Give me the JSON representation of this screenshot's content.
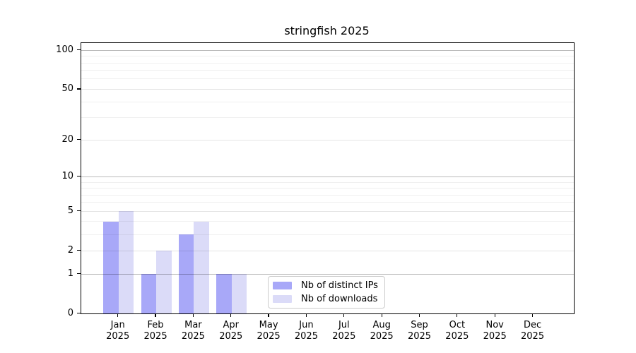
{
  "title": "stringfish 2025",
  "chart_data": {
    "type": "bar",
    "title": "stringfish 2025",
    "categories": [
      "Jan",
      "Feb",
      "Mar",
      "Apr",
      "May",
      "Jun",
      "Jul",
      "Aug",
      "Sep",
      "Oct",
      "Nov",
      "Dec"
    ],
    "x_year": "2025",
    "series": [
      {
        "name": "Nb of distinct IPs",
        "color": "#a8a8f8",
        "values": [
          4,
          1,
          3,
          1,
          0,
          0,
          0,
          0,
          0,
          0,
          0,
          0
        ]
      },
      {
        "name": "Nb of downloads",
        "color": "#dbdbf8",
        "values": [
          5,
          2,
          4,
          1,
          0,
          0,
          0,
          0,
          0,
          0,
          0,
          0
        ]
      }
    ],
    "y_axis": {
      "scale": "log10(1+x)",
      "tick_values": [
        0,
        1,
        2,
        5,
        10,
        20,
        50,
        100
      ],
      "tick_labels": [
        "0",
        "1",
        "2",
        "5",
        "10",
        "20",
        "50",
        "100"
      ],
      "decade_gridlines": [
        1,
        10,
        100
      ],
      "minor_gridlines": [
        3,
        4,
        6,
        7,
        8,
        9,
        30,
        40,
        60,
        70,
        80,
        90
      ],
      "ylim": [
        0,
        113.6
      ],
      "grid": "on, drawn above bars"
    },
    "legend_position": "lower center-right inside plot"
  }
}
